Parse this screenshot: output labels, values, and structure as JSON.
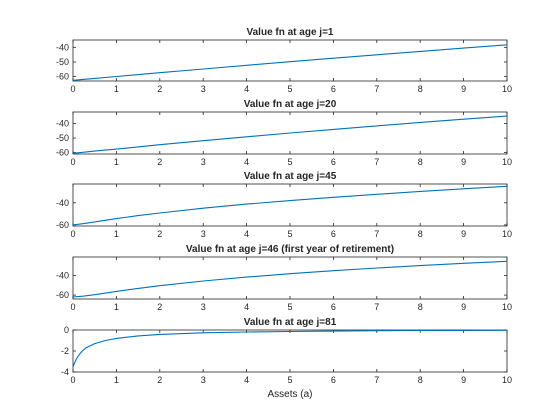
{
  "figure": {
    "background": "#ffffff",
    "line_color": "#0072bd",
    "axis_color": "#262626"
  },
  "chart_data": [
    {
      "type": "line",
      "title": "Value fn at age j=1",
      "xlabel": "",
      "ylabel": "",
      "xlim": [
        0,
        10
      ],
      "ylim": [
        -63,
        -35
      ],
      "xticks": [
        0,
        1,
        2,
        3,
        4,
        5,
        6,
        7,
        8,
        9,
        10
      ],
      "yticks": [
        -60,
        -50,
        -40
      ],
      "grid": false,
      "x": [
        0,
        0.5,
        1,
        2,
        3,
        4,
        5,
        6,
        7,
        8,
        9,
        10
      ],
      "series": [
        {
          "values": [
            -62.5,
            -61.2,
            -59.9,
            -57.3,
            -54.8,
            -52.3,
            -49.8,
            -47.4,
            -45.1,
            -42.8,
            -40.5,
            -38.3
          ]
        }
      ]
    },
    {
      "type": "line",
      "title": "Value fn at age j=20",
      "xlabel": "",
      "ylabel": "",
      "xlim": [
        0,
        10
      ],
      "ylim": [
        -61,
        -32
      ],
      "xticks": [
        0,
        1,
        2,
        3,
        4,
        5,
        6,
        7,
        8,
        9,
        10
      ],
      "yticks": [
        -60,
        -50,
        -40
      ],
      "grid": false,
      "x": [
        0,
        0.5,
        1,
        2,
        3,
        4,
        5,
        6,
        7,
        8,
        9,
        10
      ],
      "series": [
        {
          "values": [
            -60.5,
            -59.0,
            -57.6,
            -54.6,
            -51.8,
            -49.1,
            -46.5,
            -44.0,
            -41.6,
            -39.2,
            -37.0,
            -34.8
          ]
        }
      ]
    },
    {
      "type": "line",
      "title": "Value fn at age j=45",
      "xlabel": "",
      "ylabel": "",
      "xlim": [
        0,
        10
      ],
      "ylim": [
        -61,
        -23
      ],
      "xticks": [
        0,
        1,
        2,
        3,
        4,
        5,
        6,
        7,
        8,
        9,
        10
      ],
      "yticks": [
        -60,
        -40
      ],
      "grid": false,
      "x": [
        0,
        0.25,
        0.5,
        1,
        1.5,
        2,
        3,
        4,
        5,
        6,
        7,
        8,
        9,
        10
      ],
      "series": [
        {
          "values": [
            -60.0,
            -58.8,
            -57.3,
            -54.3,
            -51.6,
            -49.2,
            -44.9,
            -41.2,
            -38.0,
            -35.0,
            -32.3,
            -29.7,
            -27.3,
            -25.1
          ]
        }
      ]
    },
    {
      "type": "line",
      "title": "Value fn at age j=46 (first year of retirement)",
      "xlabel": "",
      "ylabel": "",
      "xlim": [
        0,
        10
      ],
      "ylim": [
        -64,
        -21
      ],
      "xticks": [
        0,
        1,
        2,
        3,
        4,
        5,
        6,
        7,
        8,
        9,
        10
      ],
      "yticks": [
        -60,
        -40
      ],
      "grid": false,
      "x": [
        0,
        0.25,
        0.5,
        1,
        1.5,
        2,
        3,
        4,
        5,
        6,
        7,
        8,
        9,
        10
      ],
      "series": [
        {
          "values": [
            -62.0,
            -61.0,
            -59.6,
            -56.2,
            -53.1,
            -50.4,
            -45.6,
            -41.6,
            -38.1,
            -35.0,
            -32.3,
            -29.8,
            -27.5,
            -25.4
          ]
        }
      ]
    },
    {
      "type": "line",
      "title": "Value fn at age j=81",
      "xlabel": "Assets (a)",
      "ylabel": "",
      "xlim": [
        0,
        10
      ],
      "ylim": [
        -4,
        0
      ],
      "xticks": [
        0,
        1,
        2,
        3,
        4,
        5,
        6,
        7,
        8,
        9,
        10
      ],
      "yticks": [
        -4,
        -2,
        0
      ],
      "grid": false,
      "x": [
        0,
        0.05,
        0.1,
        0.2,
        0.3,
        0.5,
        0.75,
        1,
        1.5,
        2,
        3,
        4,
        5,
        6,
        7,
        8,
        9,
        10
      ],
      "series": [
        {
          "values": [
            -3.5,
            -3.0,
            -2.6,
            -2.05,
            -1.7,
            -1.3,
            -1.0,
            -0.8,
            -0.56,
            -0.42,
            -0.27,
            -0.19,
            -0.14,
            -0.1,
            -0.07,
            -0.05,
            -0.04,
            -0.03
          ]
        }
      ]
    }
  ]
}
